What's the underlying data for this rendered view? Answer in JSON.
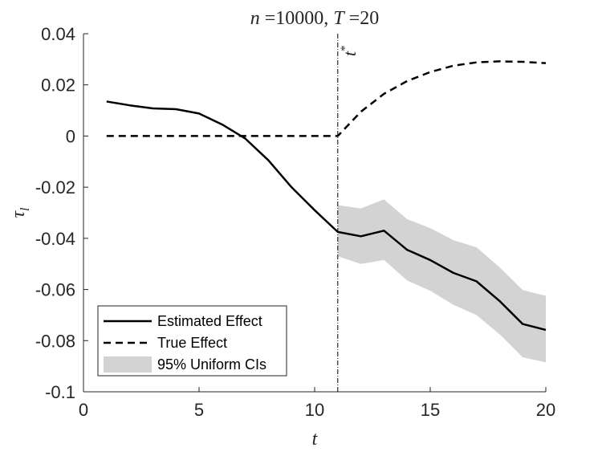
{
  "chart_data": {
    "type": "line",
    "title": "n =10000, T =20",
    "title_parts": {
      "n_symbol": "n",
      "n_value": " =10000, ",
      "t_symbol": "T",
      "t_value": " =20"
    },
    "xlabel": "t",
    "ylabel": "τ",
    "ylabel_subscript": "l",
    "xlim": [
      0,
      20
    ],
    "ylim": [
      -0.1,
      0.04
    ],
    "xticks": [
      0,
      5,
      10,
      15,
      20
    ],
    "yticks": [
      0.04,
      0.02,
      0,
      -0.02,
      -0.04,
      -0.06,
      -0.08,
      -0.1
    ],
    "ytick_labels": [
      "0.04",
      "0.02",
      "0",
      "-0.02",
      "-0.04",
      "-0.06",
      "-0.08",
      "-0.1"
    ],
    "xtick_labels": [
      "0",
      "5",
      "10",
      "15",
      "20"
    ],
    "vline": {
      "x": 11,
      "label_symbol": "t",
      "label_superscript": "*"
    },
    "series": [
      {
        "name": "Estimated Effect",
        "style": "solid",
        "color": "#000000",
        "x": [
          1,
          2,
          3,
          4,
          5,
          6,
          7,
          8,
          9,
          10,
          11,
          12,
          13,
          14,
          15,
          16,
          17,
          18,
          19,
          20
        ],
        "values": [
          0.0135,
          0.012,
          0.0108,
          0.0105,
          0.0088,
          0.0045,
          -0.001,
          -0.0095,
          -0.02,
          -0.029,
          -0.0375,
          -0.0392,
          -0.037,
          -0.0445,
          -0.0485,
          -0.0535,
          -0.0568,
          -0.0645,
          -0.0735,
          -0.0758
        ]
      },
      {
        "name": "True Effect",
        "style": "dashed",
        "color": "#000000",
        "x": [
          1,
          2,
          3,
          4,
          5,
          6,
          7,
          8,
          9,
          10,
          11,
          12,
          13,
          14,
          15,
          16,
          17,
          18,
          19,
          20
        ],
        "values": [
          0,
          0,
          0,
          0,
          0,
          0,
          0,
          0,
          0,
          0,
          0,
          0.0095,
          0.0165,
          0.0215,
          0.025,
          0.0275,
          0.0288,
          0.0292,
          0.029,
          0.0285
        ]
      }
    ],
    "confidence_band": {
      "name": "95% Uniform CIs",
      "color": "#d3d3d3",
      "x": [
        11,
        12,
        13,
        14,
        15,
        16,
        17,
        18,
        19,
        20
      ],
      "lower": [
        -0.047,
        -0.05,
        -0.0485,
        -0.0565,
        -0.0605,
        -0.066,
        -0.07,
        -0.0775,
        -0.0865,
        -0.0885
      ],
      "upper": [
        -0.027,
        -0.0283,
        -0.0248,
        -0.0325,
        -0.036,
        -0.0407,
        -0.0435,
        -0.0513,
        -0.0602,
        -0.0625
      ]
    },
    "legend": {
      "placement": "bottom-left",
      "entries": [
        "Estimated Effect",
        "True Effect",
        "95% Uniform CIs"
      ]
    }
  }
}
